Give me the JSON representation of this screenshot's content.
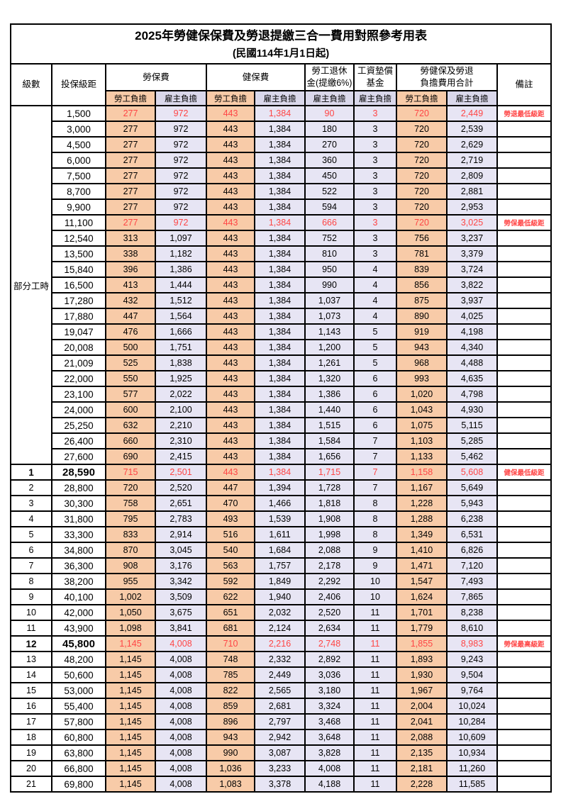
{
  "title": "2025年勞健保保費及勞退提繳三合一費用對照參考用表",
  "subtitle": "(民國114年1月1日起)",
  "colors": {
    "worker_bg": "#F8CBA8",
    "employer_bg": "#E7E5F4",
    "subheader_employer_bg": "#DAD8EB",
    "highlight_red": "#FF4545",
    "border": "#000000"
  },
  "header": {
    "col_level": "級數",
    "col_bracket": "投保級距",
    "grp_labor": "勞保費",
    "grp_health": "健保費",
    "grp_pension_l1": "勞工退休",
    "grp_pension_l2": "金(提繳6%)",
    "grp_wage_l1": "工資墊償",
    "grp_wage_l2": "基金",
    "grp_total_l1": "勞健保及勞退",
    "grp_total_l2": "負擔費用合計",
    "col_note": "備註",
    "sub_worker": "勞工負擔",
    "sub_employer": "雇主負擔"
  },
  "table": {
    "group": {
      "label": "部分工時",
      "span": 23
    },
    "rows": [
      {
        "level": "",
        "bracket": "1,500",
        "values": [
          "277",
          "972",
          "443",
          "1,384",
          "90",
          "3",
          "720",
          "2,449"
        ],
        "note": "勞退最低級距",
        "red": true,
        "bold": false
      },
      {
        "level": "",
        "bracket": "3,000",
        "values": [
          "277",
          "972",
          "443",
          "1,384",
          "180",
          "3",
          "720",
          "2,539"
        ],
        "note": "",
        "red": false,
        "bold": false
      },
      {
        "level": "",
        "bracket": "4,500",
        "values": [
          "277",
          "972",
          "443",
          "1,384",
          "270",
          "3",
          "720",
          "2,629"
        ],
        "note": "",
        "red": false,
        "bold": false
      },
      {
        "level": "",
        "bracket": "6,000",
        "values": [
          "277",
          "972",
          "443",
          "1,384",
          "360",
          "3",
          "720",
          "2,719"
        ],
        "note": "",
        "red": false,
        "bold": false
      },
      {
        "level": "",
        "bracket": "7,500",
        "values": [
          "277",
          "972",
          "443",
          "1,384",
          "450",
          "3",
          "720",
          "2,809"
        ],
        "note": "",
        "red": false,
        "bold": false
      },
      {
        "level": "",
        "bracket": "8,700",
        "values": [
          "277",
          "972",
          "443",
          "1,384",
          "522",
          "3",
          "720",
          "2,881"
        ],
        "note": "",
        "red": false,
        "bold": false
      },
      {
        "level": "",
        "bracket": "9,900",
        "values": [
          "277",
          "972",
          "443",
          "1,384",
          "594",
          "3",
          "720",
          "2,953"
        ],
        "note": "",
        "red": false,
        "bold": false
      },
      {
        "level": "",
        "bracket": "11,100",
        "values": [
          "277",
          "972",
          "443",
          "1,384",
          "666",
          "3",
          "720",
          "3,025"
        ],
        "note": "勞保最低級距",
        "red": true,
        "bold": false
      },
      {
        "level": "",
        "bracket": "12,540",
        "values": [
          "313",
          "1,097",
          "443",
          "1,384",
          "752",
          "3",
          "756",
          "3,237"
        ],
        "note": "",
        "red": false,
        "bold": false
      },
      {
        "level": "",
        "bracket": "13,500",
        "values": [
          "338",
          "1,182",
          "443",
          "1,384",
          "810",
          "3",
          "781",
          "3,379"
        ],
        "note": "",
        "red": false,
        "bold": false
      },
      {
        "level": "",
        "bracket": "15,840",
        "values": [
          "396",
          "1,386",
          "443",
          "1,384",
          "950",
          "4",
          "839",
          "3,724"
        ],
        "note": "",
        "red": false,
        "bold": false
      },
      {
        "level": "",
        "bracket": "16,500",
        "values": [
          "413",
          "1,444",
          "443",
          "1,384",
          "990",
          "4",
          "856",
          "3,822"
        ],
        "note": "",
        "red": false,
        "bold": false
      },
      {
        "level": "",
        "bracket": "17,280",
        "values": [
          "432",
          "1,512",
          "443",
          "1,384",
          "1,037",
          "4",
          "875",
          "3,937"
        ],
        "note": "",
        "red": false,
        "bold": false
      },
      {
        "level": "",
        "bracket": "17,880",
        "values": [
          "447",
          "1,564",
          "443",
          "1,384",
          "1,073",
          "4",
          "890",
          "4,025"
        ],
        "note": "",
        "red": false,
        "bold": false
      },
      {
        "level": "",
        "bracket": "19,047",
        "values": [
          "476",
          "1,666",
          "443",
          "1,384",
          "1,143",
          "5",
          "919",
          "4,198"
        ],
        "note": "",
        "red": false,
        "bold": false
      },
      {
        "level": "",
        "bracket": "20,008",
        "values": [
          "500",
          "1,751",
          "443",
          "1,384",
          "1,200",
          "5",
          "943",
          "4,340"
        ],
        "note": "",
        "red": false,
        "bold": false
      },
      {
        "level": "",
        "bracket": "21,009",
        "values": [
          "525",
          "1,838",
          "443",
          "1,384",
          "1,261",
          "5",
          "968",
          "4,488"
        ],
        "note": "",
        "red": false,
        "bold": false
      },
      {
        "level": "",
        "bracket": "22,000",
        "values": [
          "550",
          "1,925",
          "443",
          "1,384",
          "1,320",
          "6",
          "993",
          "4,635"
        ],
        "note": "",
        "red": false,
        "bold": false
      },
      {
        "level": "",
        "bracket": "23,100",
        "values": [
          "577",
          "2,022",
          "443",
          "1,384",
          "1,386",
          "6",
          "1,020",
          "4,798"
        ],
        "note": "",
        "red": false,
        "bold": false
      },
      {
        "level": "",
        "bracket": "24,000",
        "values": [
          "600",
          "2,100",
          "443",
          "1,384",
          "1,440",
          "6",
          "1,043",
          "4,930"
        ],
        "note": "",
        "red": false,
        "bold": false
      },
      {
        "level": "",
        "bracket": "25,250",
        "values": [
          "632",
          "2,210",
          "443",
          "1,384",
          "1,515",
          "6",
          "1,075",
          "5,115"
        ],
        "note": "",
        "red": false,
        "bold": false
      },
      {
        "level": "",
        "bracket": "26,400",
        "values": [
          "660",
          "2,310",
          "443",
          "1,384",
          "1,584",
          "7",
          "1,103",
          "5,285"
        ],
        "note": "",
        "red": false,
        "bold": false
      },
      {
        "level": "",
        "bracket": "27,600",
        "values": [
          "690",
          "2,415",
          "443",
          "1,384",
          "1,656",
          "7",
          "1,133",
          "5,462"
        ],
        "note": "",
        "red": false,
        "bold": false
      },
      {
        "level": "1",
        "bracket": "28,590",
        "values": [
          "715",
          "2,501",
          "443",
          "1,384",
          "1,715",
          "7",
          "1,158",
          "5,608"
        ],
        "note": "健保最低級距",
        "red": true,
        "bold": true
      },
      {
        "level": "2",
        "bracket": "28,800",
        "values": [
          "720",
          "2,520",
          "447",
          "1,394",
          "1,728",
          "7",
          "1,167",
          "5,649"
        ],
        "note": "",
        "red": false,
        "bold": false
      },
      {
        "level": "3",
        "bracket": "30,300",
        "values": [
          "758",
          "2,651",
          "470",
          "1,466",
          "1,818",
          "8",
          "1,228",
          "5,943"
        ],
        "note": "",
        "red": false,
        "bold": false
      },
      {
        "level": "4",
        "bracket": "31,800",
        "values": [
          "795",
          "2,783",
          "493",
          "1,539",
          "1,908",
          "8",
          "1,288",
          "6,238"
        ],
        "note": "",
        "red": false,
        "bold": false
      },
      {
        "level": "5",
        "bracket": "33,300",
        "values": [
          "833",
          "2,914",
          "516",
          "1,611",
          "1,998",
          "8",
          "1,349",
          "6,531"
        ],
        "note": "",
        "red": false,
        "bold": false
      },
      {
        "level": "6",
        "bracket": "34,800",
        "values": [
          "870",
          "3,045",
          "540",
          "1,684",
          "2,088",
          "9",
          "1,410",
          "6,826"
        ],
        "note": "",
        "red": false,
        "bold": false
      },
      {
        "level": "7",
        "bracket": "36,300",
        "values": [
          "908",
          "3,176",
          "563",
          "1,757",
          "2,178",
          "9",
          "1,471",
          "7,120"
        ],
        "note": "",
        "red": false,
        "bold": false
      },
      {
        "level": "8",
        "bracket": "38,200",
        "values": [
          "955",
          "3,342",
          "592",
          "1,849",
          "2,292",
          "10",
          "1,547",
          "7,493"
        ],
        "note": "",
        "red": false,
        "bold": false
      },
      {
        "level": "9",
        "bracket": "40,100",
        "values": [
          "1,002",
          "3,509",
          "622",
          "1,940",
          "2,406",
          "10",
          "1,624",
          "7,865"
        ],
        "note": "",
        "red": false,
        "bold": false
      },
      {
        "level": "10",
        "bracket": "42,000",
        "values": [
          "1,050",
          "3,675",
          "651",
          "2,032",
          "2,520",
          "11",
          "1,701",
          "8,238"
        ],
        "note": "",
        "red": false,
        "bold": false
      },
      {
        "level": "11",
        "bracket": "43,900",
        "values": [
          "1,098",
          "3,841",
          "681",
          "2,124",
          "2,634",
          "11",
          "1,779",
          "8,610"
        ],
        "note": "",
        "red": false,
        "bold": false
      },
      {
        "level": "12",
        "bracket": "45,800",
        "values": [
          "1,145",
          "4,008",
          "710",
          "2,216",
          "2,748",
          "11",
          "1,855",
          "8,983"
        ],
        "note": "勞保最高級距",
        "red": true,
        "bold": true
      },
      {
        "level": "13",
        "bracket": "48,200",
        "values": [
          "1,145",
          "4,008",
          "748",
          "2,332",
          "2,892",
          "11",
          "1,893",
          "9,243"
        ],
        "note": "",
        "red": false,
        "bold": false
      },
      {
        "level": "14",
        "bracket": "50,600",
        "values": [
          "1,145",
          "4,008",
          "785",
          "2,449",
          "3,036",
          "11",
          "1,930",
          "9,504"
        ],
        "note": "",
        "red": false,
        "bold": false
      },
      {
        "level": "15",
        "bracket": "53,000",
        "values": [
          "1,145",
          "4,008",
          "822",
          "2,565",
          "3,180",
          "11",
          "1,967",
          "9,764"
        ],
        "note": "",
        "red": false,
        "bold": false
      },
      {
        "level": "16",
        "bracket": "55,400",
        "values": [
          "1,145",
          "4,008",
          "859",
          "2,681",
          "3,324",
          "11",
          "2,004",
          "10,024"
        ],
        "note": "",
        "red": false,
        "bold": false
      },
      {
        "level": "17",
        "bracket": "57,800",
        "values": [
          "1,145",
          "4,008",
          "896",
          "2,797",
          "3,468",
          "11",
          "2,041",
          "10,284"
        ],
        "note": "",
        "red": false,
        "bold": false
      },
      {
        "level": "18",
        "bracket": "60,800",
        "values": [
          "1,145",
          "4,008",
          "943",
          "2,942",
          "3,648",
          "11",
          "2,088",
          "10,609"
        ],
        "note": "",
        "red": false,
        "bold": false
      },
      {
        "level": "19",
        "bracket": "63,800",
        "values": [
          "1,145",
          "4,008",
          "990",
          "3,087",
          "3,828",
          "11",
          "2,135",
          "10,934"
        ],
        "note": "",
        "red": false,
        "bold": false
      },
      {
        "level": "20",
        "bracket": "66,800",
        "values": [
          "1,145",
          "4,008",
          "1,036",
          "3,233",
          "4,008",
          "11",
          "2,181",
          "11,260"
        ],
        "note": "",
        "red": false,
        "bold": false
      },
      {
        "level": "21",
        "bracket": "69,800",
        "values": [
          "1,145",
          "4,008",
          "1,083",
          "3,378",
          "4,188",
          "11",
          "2,228",
          "11,585"
        ],
        "note": "",
        "red": false,
        "bold": false
      }
    ]
  }
}
